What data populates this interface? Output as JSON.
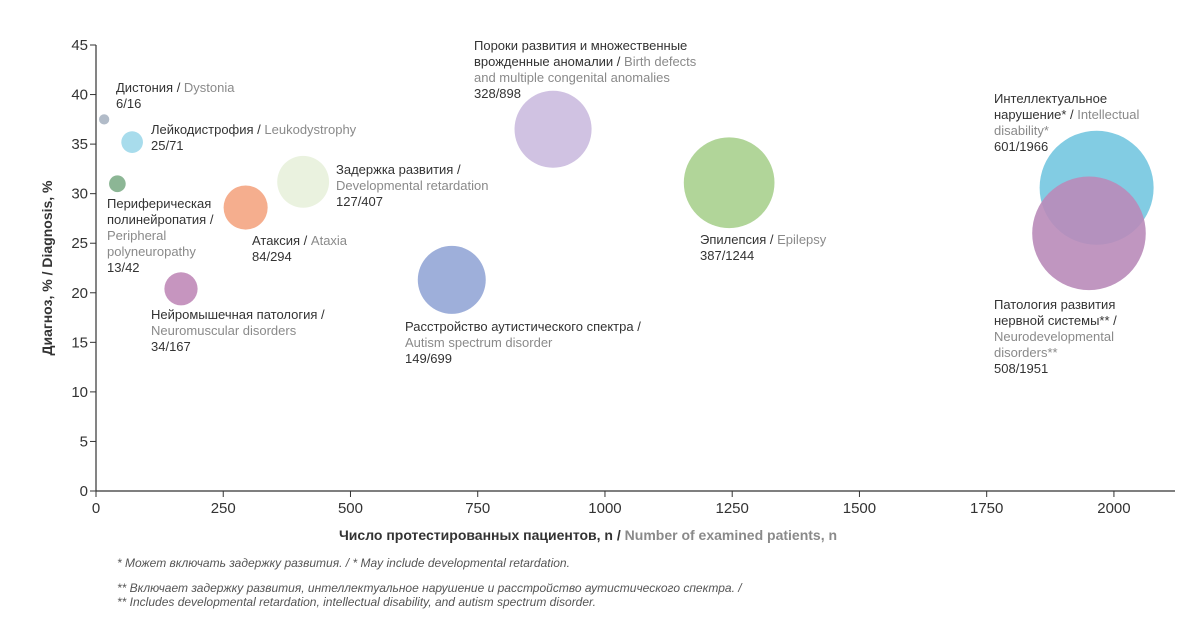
{
  "chart_data": {
    "type": "bubble",
    "xlabel": {
      "ru": "Число протестированных пациентов, n / ",
      "en": "Number of examined patients, n"
    },
    "ylabel": "Диагноз, % / Diagnosis, %",
    "xlim": [
      0,
      2120
    ],
    "ylim": [
      0,
      45
    ],
    "xticks": [
      0,
      250,
      500,
      750,
      1000,
      1250,
      1500,
      1750,
      2000
    ],
    "yticks": [
      0,
      5,
      10,
      15,
      20,
      25,
      30,
      35,
      40,
      45
    ],
    "grid": false,
    "points": [
      {
        "x": 16,
        "y": 37.5,
        "size": 16,
        "color": "#a9b4c2",
        "label": [
          {
            "ru": "Дистония / ",
            "en": "Dystonia"
          }
        ],
        "count_label": "6/16"
      },
      {
        "x": 71,
        "y": 35.2,
        "size": 71,
        "color": "#9fd8ea",
        "label": [
          {
            "ru": "Лейкодистрофия / ",
            "en": "Leukodystrophy"
          }
        ],
        "count_label": "25/71"
      },
      {
        "x": 42,
        "y": 31.0,
        "size": 42,
        "color": "#7fae8a",
        "label": [
          {
            "ru": "Периферическая"
          },
          {
            "ru": "полинейропатия /"
          },
          {
            "en": "Peripheral"
          },
          {
            "en": "polyneuropathy"
          }
        ],
        "count_label": "13/42"
      },
      {
        "x": 294,
        "y": 28.6,
        "size": 294,
        "color": "#f4a582",
        "label": [
          {
            "ru": "Атаксия / ",
            "en": "Ataxia"
          }
        ],
        "count_label": "84/294"
      },
      {
        "x": 407,
        "y": 31.2,
        "size": 407,
        "color": "#e8f1dc",
        "label": [
          {
            "ru": "Задержка развития /"
          },
          {
            "en": "Developmental retardation"
          }
        ],
        "count_label": "127/407"
      },
      {
        "x": 167,
        "y": 20.4,
        "size": 167,
        "color": "#c08ab8",
        "label": [
          {
            "ru": "Нейромышечная патология /"
          },
          {
            "en": "Neuromuscular disorders"
          }
        ],
        "count_label": "34/167"
      },
      {
        "x": 699,
        "y": 21.3,
        "size": 699,
        "color": "#93a6d6",
        "label": [
          {
            "ru": "Расстройство аутистического спектра /"
          },
          {
            "en": "Autism spectrum disorder"
          }
        ],
        "count_label": "149/699"
      },
      {
        "x": 898,
        "y": 36.5,
        "size": 898,
        "color": "#cbbbdf",
        "label": [
          {
            "ru": "Пороки развития и множественные"
          },
          {
            "ru": "врожденные аномалии / ",
            "en": "Birth defects"
          },
          {
            "en": "and multiple congenital anomalies"
          }
        ],
        "count_label": "328/898"
      },
      {
        "x": 1244,
        "y": 31.1,
        "size": 1244,
        "color": "#a9d08e",
        "label": [
          {
            "ru": "Эпилепсия / ",
            "en": "Epilepsy"
          }
        ],
        "count_label": "387/1244"
      },
      {
        "x": 1966,
        "y": 30.6,
        "size": 1966,
        "color": "#74c6e0",
        "label": [
          {
            "ru": "Интеллектуальное"
          },
          {
            "ru": "нарушение* / ",
            "en": "Intellectual"
          },
          {
            "en": "disability*"
          }
        ],
        "count_label": "601/1966"
      },
      {
        "x": 1951,
        "y": 26.0,
        "size": 1951,
        "color": "#b98bb9",
        "label": [
          {
            "ru": "Патология развития"
          },
          {
            "ru": "нервной системы** /"
          },
          {
            "en": "Neurodevelopmental"
          },
          {
            "en": "disorders**"
          }
        ],
        "count_label": "508/1951"
      }
    ],
    "footnotes": [
      "* Может включать задержку развития. / * May include developmental retardation.",
      "** Включает задержку развития, интеллектуальное нарушение и расстройство аутистического спектра. /",
      "** Includes developmental retardation, intellectual disability, and autism spectrum disorder."
    ]
  }
}
